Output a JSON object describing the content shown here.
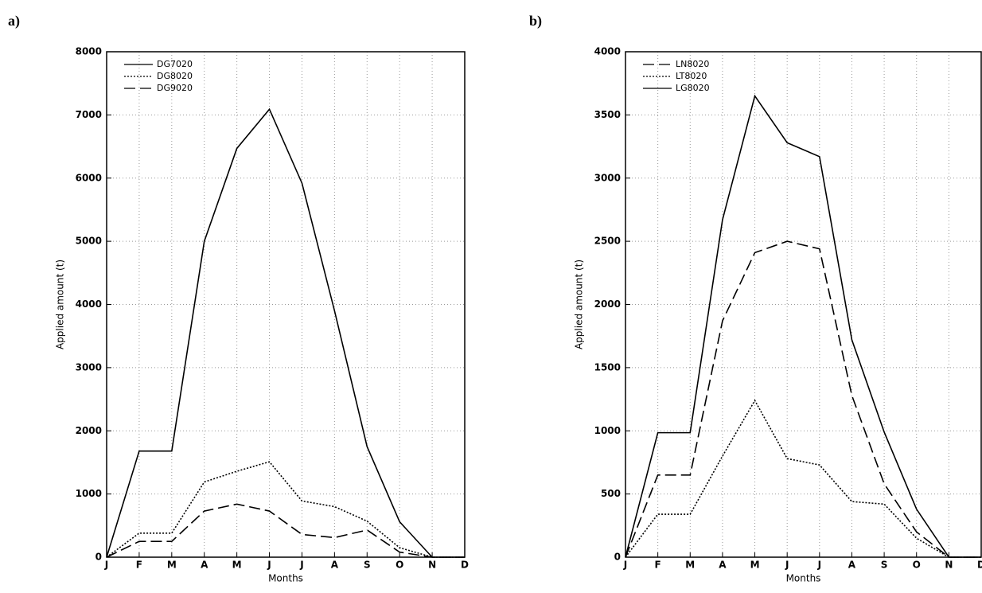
{
  "chart_data": [
    {
      "type": "line",
      "panel_label": "a)",
      "x_label": "Months",
      "y_label": "Applied amount (t)",
      "categories": [
        "J",
        "F",
        "M",
        "A",
        "M",
        "J",
        "J",
        "A",
        "S",
        "O",
        "N",
        "D"
      ],
      "ylim": [
        0,
        8000
      ],
      "yticks": [
        0,
        1000,
        2000,
        3000,
        4000,
        5000,
        6000,
        7000,
        8000
      ],
      "grid": true,
      "legend": "upper left",
      "series": [
        {
          "name": "DG7020",
          "color": "#000000",
          "style": "solid",
          "values": [
            0,
            1680,
            1680,
            5000,
            6470,
            7090,
            5920,
            3900,
            1750,
            560,
            0,
            0
          ]
        },
        {
          "name": "DG8020",
          "color": "#000000",
          "style": "dotted",
          "values": [
            0,
            380,
            380,
            1190,
            1360,
            1510,
            890,
            800,
            570,
            150,
            0,
            0
          ]
        },
        {
          "name": "DG9020",
          "color": "#000000",
          "style": "dashed",
          "values": [
            0,
            250,
            250,
            730,
            840,
            730,
            360,
            310,
            430,
            80,
            0,
            0
          ]
        }
      ]
    },
    {
      "type": "line",
      "panel_label": "b)",
      "x_label": "Months",
      "y_label": "Applied amount (t)",
      "categories": [
        "J",
        "F",
        "M",
        "A",
        "M",
        "J",
        "J",
        "A",
        "S",
        "O",
        "N",
        "D"
      ],
      "ylim": [
        0,
        4000
      ],
      "yticks": [
        0,
        500,
        1000,
        1500,
        2000,
        2500,
        3000,
        3500,
        4000
      ],
      "grid": true,
      "legend": "upper left",
      "series": [
        {
          "name": "LN8020",
          "color": "#000000",
          "style": "dashed",
          "values": [
            0,
            650,
            650,
            1870,
            2410,
            2500,
            2440,
            1280,
            580,
            200,
            0,
            0
          ]
        },
        {
          "name": "LT8020",
          "color": "#000000",
          "style": "dotted",
          "values": [
            0,
            340,
            340,
            800,
            1240,
            780,
            730,
            440,
            420,
            150,
            0,
            0
          ]
        },
        {
          "name": "LG8020",
          "color": "#000000",
          "style": "solid",
          "values": [
            0,
            985,
            985,
            2670,
            3650,
            3280,
            3170,
            1720,
            990,
            380,
            0,
            0
          ]
        }
      ]
    }
  ]
}
